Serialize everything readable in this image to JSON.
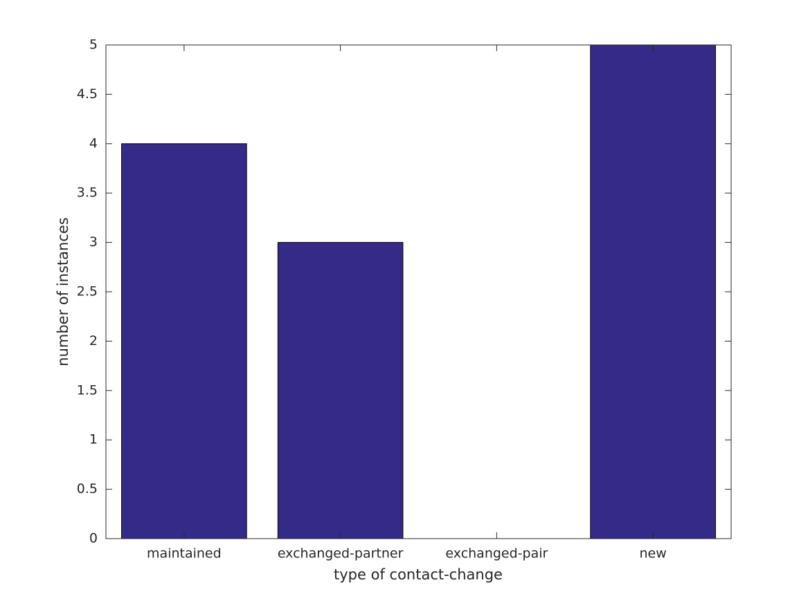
{
  "chart_data": {
    "type": "bar",
    "categories": [
      "maintained",
      "exchanged-partner",
      "exchanged-pair",
      "new"
    ],
    "values": [
      4,
      3,
      0,
      5
    ],
    "color": "#352a87",
    "xlabel": "type of contact-change",
    "ylabel": "number of instances",
    "ylim": [
      0,
      5
    ],
    "yticks": [
      0,
      0.5,
      1,
      1.5,
      2,
      2.5,
      3,
      3.5,
      4,
      4.5,
      5
    ],
    "grid": false
  }
}
